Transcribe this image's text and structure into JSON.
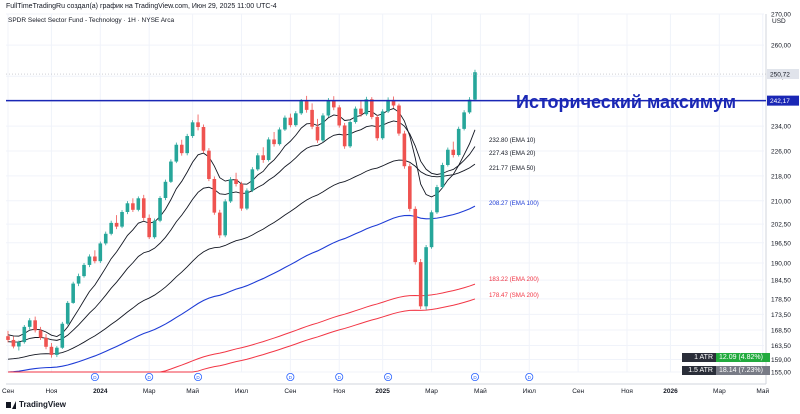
{
  "caption": "FullTimeTradingRu создал(а) график на TradingView.com, Июн 29, 2025 11:00 UTC-4",
  "symbol_title": "SPDR Select Sector Fund - Technology · 1Н · NYSE Arca",
  "currency": "USD",
  "logo_text": "TradingView",
  "colors": {
    "up": "#26a69a",
    "down": "#ef5350",
    "ema10": "#131722",
    "ema20": "#131722",
    "ema50": "#131722",
    "ema100": "#1e3cd6",
    "ema200": "#f23645",
    "sma200": "#f23645",
    "resistance": "#1a27b5",
    "annotation": "#1a27b5"
  },
  "annotation": "Исторический максимум",
  "atr": [
    {
      "label": "1 ATR",
      "value": "12.09 (4.82%)",
      "color": "#22ab3e"
    },
    {
      "label": "1.5 ATR",
      "value": "18.14 (7.23%)",
      "color": "#787b86"
    }
  ],
  "chart_data": {
    "type": "candlestick",
    "ylim": [
      155,
      270
    ],
    "y_ticks": [
      "270,00",
      "260,00",
      "250,00",
      "242,00",
      "234,00",
      "226,00",
      "218,00",
      "210,00",
      "202,50",
      "196,50",
      "190,00",
      "184,50",
      "178,50",
      "173,50",
      "168,50",
      "163,50",
      "159,00",
      "155,00"
    ],
    "y_tick_values": [
      270,
      260,
      250,
      242,
      234,
      226,
      218,
      210,
      202.5,
      196.5,
      190,
      184.5,
      178.5,
      173.5,
      168.5,
      163.5,
      159,
      155
    ],
    "x_ticks": [
      {
        "label": "Сен",
        "i": 0
      },
      {
        "label": "Ноя",
        "i": 8
      },
      {
        "label": "2024",
        "i": 17
      },
      {
        "label": "Мар",
        "i": 26
      },
      {
        "label": "Май",
        "i": 34
      },
      {
        "label": "Июл",
        "i": 43
      },
      {
        "label": "Сен",
        "i": 52
      },
      {
        "label": "Ноя",
        "i": 61
      },
      {
        "label": "2025",
        "i": 69
      },
      {
        "label": "Мар",
        "i": 78
      },
      {
        "label": "Май",
        "i": 87
      },
      {
        "label": "Июл",
        "i": 96
      },
      {
        "label": "Сен",
        "i": 105
      },
      {
        "label": "Ноя",
        "i": 114
      },
      {
        "label": "2026",
        "i": 122
      },
      {
        "label": "Мар",
        "i": 131
      },
      {
        "label": "Май",
        "i": 139
      },
      {
        "label": "Июл",
        "i": 148
      }
    ],
    "dividend_markers": [
      16,
      26,
      35,
      52,
      61,
      70,
      86,
      96
    ],
    "candles": [
      [
        166.5,
        168.2,
        164.5,
        165.3
      ],
      [
        165.3,
        166.4,
        162.6,
        163.2
      ],
      [
        163.2,
        165.1,
        161.9,
        164.6
      ],
      [
        164.6,
        170.1,
        164.1,
        169.5
      ],
      [
        169.5,
        172.3,
        168.7,
        171.6
      ],
      [
        171.6,
        172.8,
        167.7,
        168.4
      ],
      [
        168.4,
        169.5,
        165.3,
        166.0
      ],
      [
        166.0,
        167.2,
        162.3,
        163.1
      ],
      [
        163.1,
        164.3,
        159.6,
        160.5
      ],
      [
        160.5,
        163.3,
        159.8,
        162.8
      ],
      [
        162.8,
        171.1,
        162.4,
        170.5
      ],
      [
        170.5,
        177.8,
        170.0,
        177.2
      ],
      [
        177.2,
        184.0,
        176.9,
        183.4
      ],
      [
        183.4,
        186.6,
        182.6,
        185.8
      ],
      [
        185.8,
        190.0,
        185.3,
        189.4
      ],
      [
        189.4,
        192.8,
        188.7,
        192.1
      ],
      [
        192.1,
        194.1,
        189.9,
        190.6
      ],
      [
        190.6,
        196.9,
        190.0,
        196.3
      ],
      [
        196.3,
        200.1,
        195.7,
        199.4
      ],
      [
        199.4,
        203.6,
        198.9,
        202.9
      ],
      [
        202.9,
        205.4,
        200.9,
        201.7
      ],
      [
        201.7,
        207.0,
        201.2,
        206.4
      ],
      [
        206.4,
        209.9,
        205.7,
        209.2
      ],
      [
        209.2,
        210.8,
        206.4,
        207.1
      ],
      [
        207.1,
        211.4,
        206.6,
        210.8
      ],
      [
        210.8,
        211.9,
        203.6,
        204.5
      ],
      [
        204.5,
        205.6,
        197.7,
        198.3
      ],
      [
        198.3,
        204.3,
        197.8,
        203.6
      ],
      [
        203.6,
        211.5,
        203.1,
        210.9
      ],
      [
        210.9,
        216.8,
        210.2,
        216.1
      ],
      [
        216.1,
        223.3,
        215.7,
        222.6
      ],
      [
        222.6,
        228.7,
        222.1,
        228.0
      ],
      [
        228.0,
        229.6,
        224.5,
        225.3
      ],
      [
        225.3,
        231.5,
        224.6,
        230.8
      ],
      [
        230.8,
        235.9,
        230.2,
        235.2
      ],
      [
        235.2,
        237.7,
        232.6,
        233.7
      ],
      [
        233.7,
        234.5,
        225.4,
        226.1
      ],
      [
        226.1,
        226.9,
        216.3,
        217.0
      ],
      [
        217.0,
        217.8,
        205.5,
        206.2
      ],
      [
        206.2,
        207.1,
        198.0,
        198.9
      ],
      [
        198.9,
        210.5,
        198.3,
        209.8
      ],
      [
        209.8,
        217.6,
        209.3,
        216.9
      ],
      [
        216.9,
        219.0,
        214.6,
        215.4
      ],
      [
        215.4,
        216.1,
        206.8,
        207.5
      ],
      [
        207.5,
        214.0,
        207.0,
        213.3
      ],
      [
        213.3,
        220.8,
        212.8,
        220.1
      ],
      [
        220.1,
        225.3,
        219.6,
        224.6
      ],
      [
        224.6,
        227.2,
        222.2,
        223.1
      ],
      [
        223.1,
        230.4,
        222.6,
        229.7
      ],
      [
        229.7,
        232.1,
        227.4,
        228.2
      ],
      [
        228.2,
        233.6,
        227.7,
        232.9
      ],
      [
        232.9,
        237.4,
        232.4,
        236.7
      ],
      [
        236.7,
        238.0,
        233.6,
        234.3
      ],
      [
        234.3,
        238.8,
        233.8,
        238.1
      ],
      [
        238.1,
        242.7,
        237.6,
        242.0
      ],
      [
        242.0,
        243.7,
        238.3,
        239.2
      ],
      [
        239.2,
        241.3,
        233.0,
        233.8
      ],
      [
        233.8,
        236.3,
        228.6,
        229.4
      ],
      [
        229.4,
        238.1,
        228.9,
        237.4
      ],
      [
        237.4,
        243.0,
        236.9,
        242.3
      ],
      [
        242.3,
        243.6,
        239.1,
        240.0
      ],
      [
        240.0,
        240.7,
        233.5,
        234.2
      ],
      [
        234.2,
        235.0,
        226.7,
        227.5
      ],
      [
        227.5,
        236.0,
        227.0,
        235.3
      ],
      [
        235.3,
        240.3,
        234.8,
        239.6
      ],
      [
        239.6,
        242.2,
        237.0,
        237.8
      ],
      [
        237.8,
        243.4,
        237.3,
        242.6
      ],
      [
        242.6,
        243.3,
        236.2,
        236.9
      ],
      [
        236.9,
        237.6,
        229.3,
        230.1
      ],
      [
        230.1,
        239.4,
        229.6,
        238.7
      ],
      [
        238.7,
        243.2,
        238.2,
        242.4
      ],
      [
        242.4,
        243.5,
        239.8,
        240.6
      ],
      [
        240.6,
        241.2,
        230.9,
        231.6
      ],
      [
        231.6,
        232.5,
        220.3,
        221.1
      ],
      [
        221.1,
        222.0,
        206.6,
        207.4
      ],
      [
        207.4,
        208.2,
        189.5,
        190.3
      ],
      [
        190.3,
        191.3,
        175.2,
        176.1
      ],
      [
        176.1,
        195.8,
        175.0,
        195.1
      ],
      [
        195.1,
        206.9,
        194.6,
        206.3
      ],
      [
        206.3,
        215.1,
        205.8,
        214.4
      ],
      [
        214.4,
        222.2,
        213.9,
        221.5
      ],
      [
        221.5,
        227.1,
        221.0,
        226.4
      ],
      [
        226.4,
        229.0,
        223.9,
        224.7
      ],
      [
        224.7,
        233.8,
        224.2,
        233.1
      ],
      [
        233.1,
        239.1,
        232.6,
        238.4
      ],
      [
        238.4,
        243.3,
        237.9,
        242.5
      ],
      [
        242.5,
        252.1,
        242.0,
        251.3
      ]
    ],
    "series": [
      {
        "name": "EMA 10",
        "label": "232.80 (EMA 10)",
        "last": 232.8
      },
      {
        "name": "EMA 20",
        "label": "227.43 (EMA 20)",
        "last": 227.43
      },
      {
        "name": "EMA 50",
        "label": "221.77 (EMA 50)",
        "last": 221.77
      },
      {
        "name": "EMA 100",
        "label": "208.27 (EMA 100)",
        "last": 208.27
      },
      {
        "name": "EMA 200",
        "label": "183.22 (EMA 200)",
        "last": 183.22
      },
      {
        "name": "SMA 200",
        "label": "178.47 (SMA 200)",
        "last": 178.47
      }
    ],
    "price_labels": {
      "last": "250,72",
      "resistance": "242,17"
    },
    "last_price": 250.72,
    "resistance": 242.17
  }
}
